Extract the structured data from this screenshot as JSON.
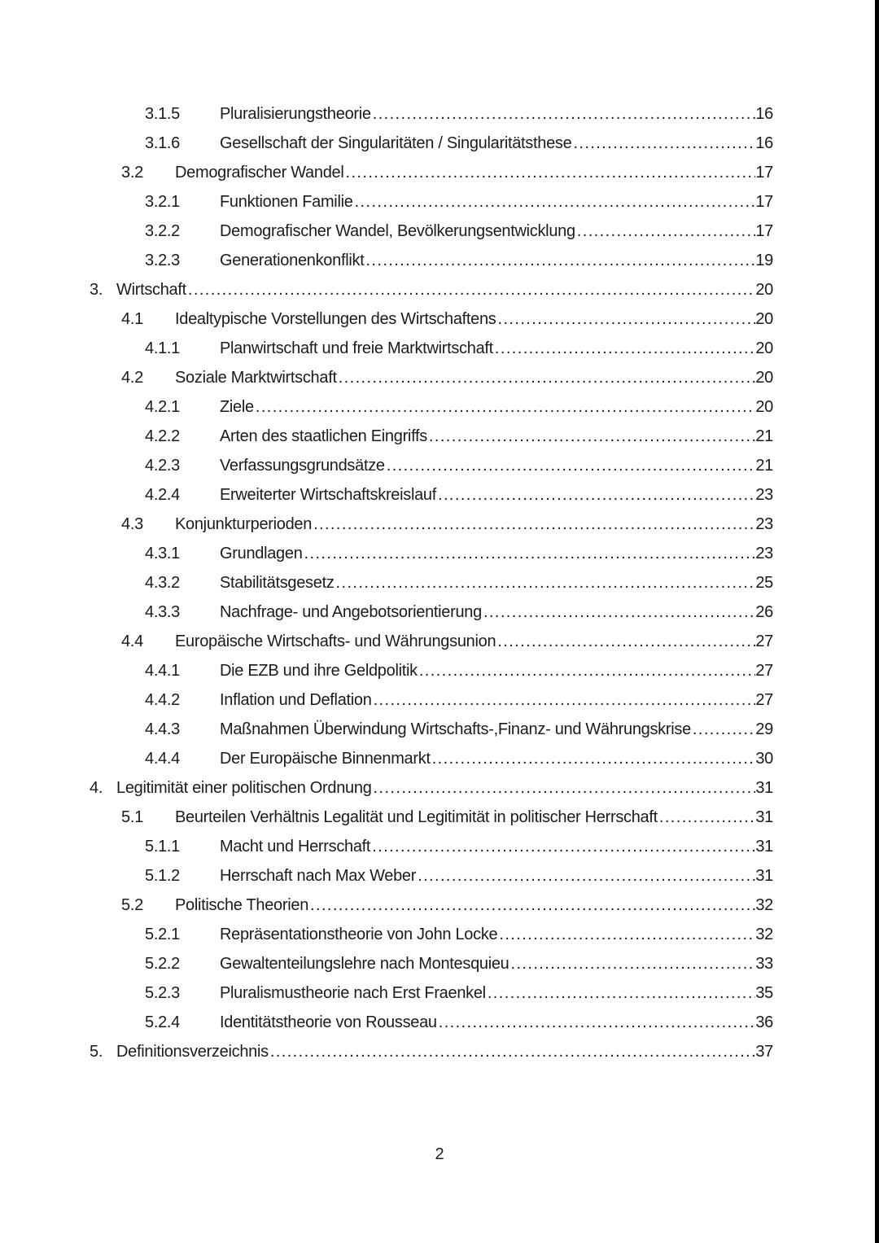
{
  "document": {
    "colors": {
      "background": "#ffffff",
      "text": "#1b1b1b",
      "edge_strip": "#000000"
    },
    "leader_style": "dots",
    "toc_entries": [
      {
        "level": 3,
        "num": "3.1.5",
        "title": "Pluralisierungstheorie",
        "page": "16"
      },
      {
        "level": 3,
        "num": "3.1.6",
        "title": "Gesellschaft der Singularitäten / Singularitätsthese",
        "page": "16"
      },
      {
        "level": 2,
        "num": "3.2",
        "title": "Demografischer Wandel",
        "page": "17"
      },
      {
        "level": 3,
        "num": "3.2.1",
        "title": "Funktionen Familie",
        "page": "17"
      },
      {
        "level": 3,
        "num": "3.2.2",
        "title": "Demografischer Wandel, Bevölkerungsentwicklung",
        "page": "17"
      },
      {
        "level": 3,
        "num": "3.2.3",
        "title": "Generationenkonflikt",
        "page": "19"
      },
      {
        "level": 1,
        "num": "3.",
        "title": "Wirtschaft",
        "page": "20"
      },
      {
        "level": 2,
        "num": "4.1",
        "title": "Idealtypische Vorstellungen des Wirtschaftens",
        "page": "20"
      },
      {
        "level": 3,
        "num": "4.1.1",
        "title": "Planwirtschaft und freie Marktwirtschaft",
        "page": "20"
      },
      {
        "level": 2,
        "num": "4.2",
        "title": "Soziale Marktwirtschaft",
        "page": "20"
      },
      {
        "level": 3,
        "num": "4.2.1",
        "title": "Ziele",
        "page": "20"
      },
      {
        "level": 3,
        "num": "4.2.2",
        "title": "Arten des staatlichen Eingriffs",
        "page": "21"
      },
      {
        "level": 3,
        "num": "4.2.3",
        "title": "Verfassungsgrundsätze",
        "page": "21"
      },
      {
        "level": 3,
        "num": "4.2.4",
        "title": "Erweiterter Wirtschaftskreislauf",
        "page": "23"
      },
      {
        "level": 2,
        "num": "4.3",
        "title": "Konjunkturperioden",
        "page": "23"
      },
      {
        "level": 3,
        "num": "4.3.1",
        "title": "Grundlagen",
        "page": "23"
      },
      {
        "level": 3,
        "num": "4.3.2",
        "title": "Stabilitätsgesetz",
        "page": "25"
      },
      {
        "level": 3,
        "num": "4.3.3",
        "title": "Nachfrage- und Angebotsorientierung",
        "page": "26"
      },
      {
        "level": 2,
        "num": "4.4",
        "title": "Europäische Wirtschafts- und Währungsunion",
        "page": "27"
      },
      {
        "level": 3,
        "num": "4.4.1",
        "title": "Die EZB und ihre Geldpolitik",
        "page": "27"
      },
      {
        "level": 3,
        "num": "4.4.2",
        "title": "Inflation und Deflation",
        "page": "27"
      },
      {
        "level": 3,
        "num": "4.4.3",
        "title": "Maßnahmen Überwindung Wirtschafts-,Finanz- und Währungskrise",
        "page": "29"
      },
      {
        "level": 3,
        "num": "4.4.4",
        "title": "Der Europäische Binnenmarkt",
        "page": "30"
      },
      {
        "level": 1,
        "num": "4.",
        "title": "Legitimität einer politischen Ordnung",
        "page": "31"
      },
      {
        "level": 2,
        "num": "5.1",
        "title": "Beurteilen Verhältnis Legalität und Legitimität in politischer Herrschaft",
        "page": "31"
      },
      {
        "level": 3,
        "num": "5.1.1",
        "title": "Macht und Herrschaft",
        "page": "31"
      },
      {
        "level": 3,
        "num": "5.1.2",
        "title": "Herrschaft nach Max Weber",
        "page": "31"
      },
      {
        "level": 2,
        "num": "5.2",
        "title": "Politische Theorien",
        "page": "32"
      },
      {
        "level": 3,
        "num": "5.2.1",
        "title": "Repräsentationstheorie von John Locke",
        "page": "32"
      },
      {
        "level": 3,
        "num": "5.2.2",
        "title": "Gewaltenteilungslehre nach Montesquieu",
        "page": "33"
      },
      {
        "level": 3,
        "num": "5.2.3",
        "title": "Pluralismustheorie nach Erst Fraenkel",
        "page": "35"
      },
      {
        "level": 3,
        "num": "5.2.4",
        "title": "Identitätstheorie von Rousseau",
        "page": "36"
      },
      {
        "level": 1,
        "num": "5.",
        "title": "Definitionsverzeichnis",
        "page": "37"
      }
    ],
    "footer": {
      "page_number": "2"
    }
  }
}
